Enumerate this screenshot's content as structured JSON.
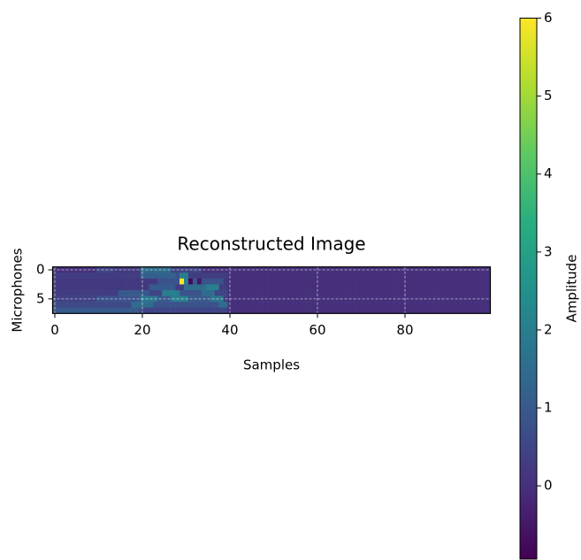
{
  "chart_data": {
    "type": "heatmap",
    "title": "Reconstructed Image",
    "x_label": "Samples",
    "y_label": "Microphones",
    "colorbar_label": "Amplitude",
    "colormap": "viridis",
    "grid": true,
    "xlim": [
      -0.5,
      99.5
    ],
    "ylim": [
      7.5,
      -0.5
    ],
    "xticks": [
      0,
      20,
      40,
      60,
      80
    ],
    "yticks": [
      0,
      5
    ],
    "clim": [
      -0.94,
      6
    ],
    "cticks": [
      0,
      1,
      2,
      3,
      4,
      5,
      6
    ],
    "z": [
      [
        0,
        0,
        0,
        0,
        0,
        0,
        0,
        0,
        0,
        0,
        0.5,
        0.5,
        0.5,
        0.5,
        0.2,
        0.2,
        0.2,
        0.2,
        0.2,
        0.2,
        1.5,
        1.5,
        1.5,
        1.5,
        1.5,
        1.5,
        1.5,
        0.5,
        0.5,
        0.5,
        0.5,
        0.5,
        0.5,
        0.5,
        0,
        0,
        0,
        0,
        0,
        0,
        0,
        0,
        0,
        0,
        0,
        0,
        0,
        0,
        0,
        0,
        0,
        0,
        0,
        0,
        0,
        0,
        0,
        0,
        0,
        0,
        0,
        0,
        0,
        0,
        0,
        0,
        0,
        0,
        0,
        0,
        0,
        0,
        0,
        0,
        0,
        0,
        0,
        0,
        0,
        0,
        0,
        0,
        0,
        0,
        0,
        0,
        0,
        0,
        0,
        0,
        0,
        0,
        0,
        0,
        0,
        0,
        0,
        0,
        0,
        0
      ],
      [
        0.3,
        0.3,
        0.3,
        0.3,
        0.3,
        0.3,
        0.3,
        0.3,
        0.3,
        0.3,
        0.3,
        0.3,
        0.3,
        0.3,
        0.3,
        0.3,
        0.3,
        0.3,
        0.3,
        0.3,
        1.2,
        1.2,
        1.2,
        1.2,
        1.2,
        1.2,
        1.2,
        1.2,
        0.8,
        2,
        2,
        0.3,
        0.3,
        0.3,
        0.3,
        0.3,
        0.3,
        0.3,
        0.3,
        0.3,
        0,
        0,
        0,
        0,
        0,
        0,
        0,
        0,
        0,
        0,
        0,
        0,
        0,
        0,
        0,
        0,
        0,
        0,
        0,
        0,
        0,
        0,
        0,
        0,
        0,
        0,
        0,
        0,
        0,
        0,
        0,
        0,
        0,
        0,
        0,
        0,
        0,
        0,
        0,
        0,
        0,
        0,
        0,
        0,
        0,
        0,
        0,
        0,
        0,
        0,
        0,
        0,
        0,
        0,
        0,
        0,
        0,
        0,
        0,
        0
      ],
      [
        0.2,
        0.2,
        0.2,
        0.2,
        0.2,
        0.2,
        0.2,
        0.2,
        0.2,
        0.2,
        0.2,
        0.2,
        0.2,
        0.2,
        0.2,
        0.2,
        0.2,
        0.2,
        0.2,
        0.2,
        0.2,
        0.2,
        0.2,
        0.2,
        0.8,
        0.8,
        0.8,
        0.8,
        0.8,
        6,
        2,
        -0.8,
        1,
        -0.5,
        0.8,
        0.8,
        0.8,
        0.8,
        0.8,
        0.2,
        0,
        0,
        0,
        0,
        0,
        0,
        0,
        0,
        0,
        0,
        0,
        0,
        0,
        0,
        0,
        0,
        0,
        0,
        0,
        0,
        0,
        0,
        0,
        0,
        0,
        0,
        0,
        0,
        0,
        0,
        0,
        0,
        0,
        0,
        0,
        0,
        0,
        0,
        0,
        0,
        0,
        0,
        0,
        0,
        0,
        0,
        0,
        0,
        0,
        0,
        0,
        0,
        0,
        0,
        0,
        0,
        0,
        0,
        0,
        0
      ],
      [
        0.2,
        0.2,
        0.2,
        0.2,
        0.2,
        0.2,
        0.2,
        0.2,
        0.2,
        0.2,
        0.2,
        0.2,
        0.2,
        0.2,
        0.2,
        0.2,
        0.2,
        0.2,
        0.2,
        0.2,
        0.2,
        0.2,
        1,
        1,
        1,
        1,
        1,
        1,
        0.3,
        0.3,
        1.5,
        1.5,
        1.5,
        1.5,
        1.5,
        2,
        2,
        2,
        0.3,
        0.3,
        0,
        0,
        0,
        0,
        0,
        0,
        0,
        0,
        0,
        0,
        0,
        0,
        0,
        0,
        0,
        0,
        0,
        0,
        0,
        0,
        0,
        0,
        0,
        0,
        0,
        0,
        0,
        0,
        0,
        0,
        0,
        0,
        0,
        0,
        0,
        0,
        0,
        0,
        0,
        0,
        0,
        0,
        0,
        0,
        0,
        0,
        0,
        0,
        0,
        0,
        0,
        0,
        0,
        0,
        0,
        0,
        0,
        0,
        0,
        0
      ],
      [
        0.3,
        0.3,
        0.3,
        0.3,
        0.3,
        0.3,
        0.3,
        0.3,
        0.3,
        0.3,
        0.3,
        0.3,
        0.3,
        0.3,
        0.3,
        1,
        1,
        1,
        1,
        1,
        1,
        1,
        0.5,
        0.5,
        0.5,
        2,
        2,
        2,
        2,
        0.8,
        0.8,
        0.8,
        0.8,
        0.8,
        1.5,
        1.5,
        1.5,
        0.5,
        0.5,
        0.5,
        0,
        0,
        0,
        0,
        0,
        0,
        0,
        0,
        0,
        0,
        0,
        0,
        0,
        0,
        0,
        0,
        0,
        0,
        0,
        0,
        0,
        0,
        0,
        0,
        0,
        0,
        0,
        0,
        0,
        0,
        0,
        0,
        0,
        0,
        0,
        0,
        0,
        0,
        0,
        0,
        0,
        0,
        0,
        0,
        0,
        0,
        0,
        0,
        0,
        0,
        0,
        0,
        0,
        0,
        0,
        0,
        0,
        0,
        0,
        0
      ],
      [
        0.4,
        0.4,
        0.4,
        0.4,
        0.4,
        0.4,
        0.4,
        0.4,
        0.4,
        0.4,
        0.8,
        0.8,
        0.8,
        0.8,
        0.8,
        0.8,
        0.8,
        0.8,
        0.8,
        0.8,
        1.8,
        1.8,
        1.8,
        1.8,
        1,
        1,
        1,
        2,
        2,
        2,
        2,
        1,
        1,
        1,
        1,
        1,
        1.8,
        1.8,
        1.8,
        0.3,
        0,
        0,
        0,
        0,
        0,
        0,
        0,
        0,
        0,
        0,
        0,
        0,
        0,
        0,
        0,
        0,
        0,
        0,
        0,
        0,
        0,
        0,
        0,
        0,
        0,
        0,
        0,
        0,
        0,
        0,
        0,
        0,
        0,
        0,
        0,
        0,
        0,
        0,
        0,
        0,
        0,
        0,
        0,
        0,
        0,
        0,
        0,
        0,
        0,
        0,
        0,
        0,
        0,
        0,
        0,
        0,
        0,
        0,
        0,
        0
      ],
      [
        0.6,
        0.6,
        0.6,
        0.6,
        0.6,
        0.6,
        0.6,
        0.6,
        0.6,
        0.6,
        0.6,
        0.6,
        0.6,
        0.6,
        0.6,
        0.6,
        0.6,
        0.6,
        1.5,
        1.5,
        1.5,
        1.5,
        1.5,
        0.8,
        0.8,
        0.8,
        0.8,
        0.8,
        0.8,
        0.8,
        0.8,
        0.8,
        0.8,
        0.8,
        0.8,
        0.8,
        0.8,
        0.8,
        1.5,
        1.5,
        0,
        0,
        0,
        0,
        0,
        0,
        0,
        0,
        0,
        0,
        0,
        0,
        0,
        0,
        0,
        0,
        0,
        0,
        0,
        0,
        0,
        0,
        0,
        0,
        0,
        0,
        0,
        0,
        0,
        0,
        0,
        0,
        0,
        0,
        0,
        0,
        0,
        0,
        0,
        0,
        0,
        0,
        0,
        0,
        0,
        0,
        0,
        0,
        0,
        0,
        0,
        0,
        0,
        0,
        0,
        0,
        0,
        0,
        0,
        0
      ],
      [
        1,
        1,
        1,
        1,
        1,
        1,
        1,
        1,
        1,
        1,
        1,
        1,
        1,
        1,
        1,
        1,
        1,
        1,
        1,
        1,
        0.5,
        0.5,
        0.5,
        0.5,
        0.5,
        0.5,
        0.5,
        0.5,
        0.5,
        0.5,
        0.5,
        0.5,
        0.5,
        0.5,
        0.5,
        0.5,
        0.5,
        0.5,
        0.5,
        0.5,
        0,
        0,
        0,
        0,
        0,
        0,
        0,
        0,
        0,
        0,
        0,
        0,
        0,
        0,
        0,
        0,
        0,
        0,
        0,
        0,
        0,
        0,
        0,
        0,
        0,
        0,
        0,
        0,
        0,
        0,
        0,
        0,
        0,
        0,
        0,
        0,
        0,
        0,
        0,
        0,
        0,
        0,
        0,
        0,
        0,
        0,
        0,
        0,
        0,
        0,
        0,
        0,
        0,
        0,
        0,
        0,
        0,
        0,
        0,
        0
      ]
    ]
  }
}
